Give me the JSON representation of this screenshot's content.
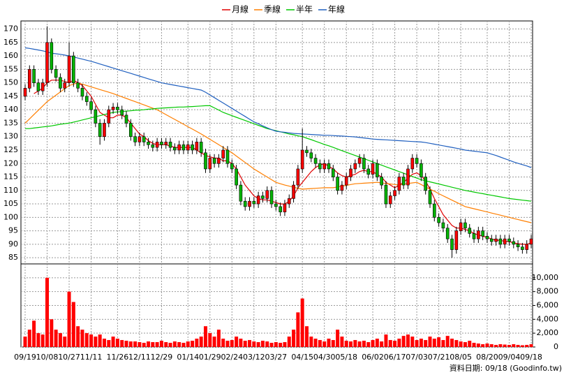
{
  "chart_data": {
    "type": "candlestick",
    "categories": [
      "09/19",
      null,
      null,
      null,
      null,
      "10/08",
      null,
      null,
      null,
      null,
      "10/27",
      null,
      null,
      null,
      null,
      "11/11",
      null,
      null,
      null,
      null,
      null,
      "11/26",
      null,
      null,
      null,
      null,
      "12/11",
      null,
      null,
      null,
      null,
      "12/29",
      null,
      null,
      null,
      null,
      null,
      "01/14",
      null,
      null,
      null,
      null,
      "01/29",
      null,
      null,
      null,
      null,
      "02/24",
      null,
      null,
      null,
      null,
      "03/12",
      null,
      null,
      null,
      null,
      "03/27",
      null,
      null,
      null,
      null,
      null,
      "04/15",
      null,
      null,
      null,
      null,
      "04/30",
      null,
      null,
      null,
      null,
      "05/18",
      null,
      null,
      null,
      null,
      null,
      "06/02",
      null,
      null,
      null,
      null,
      "06/17",
      null,
      null,
      null,
      null,
      "07/03",
      null,
      null,
      null,
      null,
      "07/21",
      null,
      null,
      null,
      null,
      "08/05",
      null,
      null,
      null,
      null,
      null,
      "08/20",
      null,
      null,
      null,
      null,
      "09/04",
      null,
      null,
      null,
      null,
      "09/18"
    ],
    "ohlc": {
      "open": [
        145,
        148,
        155,
        150,
        147,
        150,
        165,
        155,
        152,
        148,
        150,
        160,
        150,
        148,
        145,
        143,
        140,
        135,
        130,
        135,
        140,
        141,
        140,
        138,
        135,
        130,
        128,
        130,
        128,
        127,
        126,
        128,
        127,
        128,
        126,
        125,
        127,
        125,
        127,
        125,
        128,
        124,
        118,
        122,
        120,
        122,
        125,
        120,
        118,
        112,
        106,
        104,
        106,
        105,
        108,
        107,
        110,
        105,
        104,
        102,
        105,
        107,
        112,
        118,
        125,
        124,
        122,
        120,
        118,
        120,
        118,
        115,
        110,
        112,
        115,
        118,
        120,
        122,
        118,
        116,
        120,
        115,
        112,
        105,
        108,
        110,
        115,
        112,
        118,
        122,
        120,
        115,
        110,
        105,
        100,
        98,
        96,
        92,
        88,
        95,
        98,
        96,
        94,
        92,
        95,
        93,
        92,
        91,
        92,
        90,
        92,
        91,
        90,
        89,
        88,
        90
      ],
      "high": [
        149.5,
        156.5,
        156.5,
        151.5,
        151.5,
        171,
        166.5,
        156.5,
        153.5,
        151.5,
        165,
        161.5,
        151.5,
        149.5,
        146.5,
        144.5,
        141.5,
        136.5,
        136.5,
        141.5,
        142.5,
        142.5,
        141.5,
        139.5,
        136.5,
        131.5,
        131.5,
        131.5,
        129.5,
        128.5,
        129.5,
        129.5,
        129.5,
        129.5,
        127.5,
        128.5,
        128.5,
        128.5,
        128.5,
        129.5,
        129.5,
        125.5,
        123.5,
        123.5,
        123.5,
        126.5,
        126.5,
        121.5,
        119.5,
        113.5,
        107.5,
        107.5,
        107.5,
        109.5,
        109.5,
        111.5,
        111.5,
        106.5,
        105.5,
        106.5,
        108.5,
        113.5,
        119.5,
        133,
        126.5,
        125.5,
        123.5,
        121.5,
        121.5,
        121.5,
        119.5,
        116.5,
        113.5,
        116.5,
        119.5,
        121.5,
        123.5,
        123.5,
        119.5,
        121.5,
        121.5,
        116.5,
        113.5,
        109.5,
        111.5,
        116.5,
        116.5,
        119.5,
        123.5,
        123.5,
        121.5,
        116.5,
        111.5,
        106.5,
        101.5,
        99.5,
        97.5,
        93.5,
        96.5,
        99.5,
        99.5,
        97.5,
        95.5,
        96.5,
        96.5,
        94.5,
        93.5,
        93.5,
        93.5,
        93.5,
        93.5,
        92.5,
        91.5,
        90.5,
        91.5,
        93.5
      ],
      "low": [
        143.5,
        146.5,
        148.5,
        145.5,
        145.5,
        148.5,
        153.5,
        150.5,
        146.5,
        146.5,
        148.5,
        148.5,
        146.5,
        143.5,
        141.5,
        138.5,
        133.5,
        127,
        128.5,
        133.5,
        138.5,
        138.5,
        136.5,
        133.5,
        128.5,
        126.5,
        126.5,
        126.5,
        125.5,
        124.5,
        124.5,
        125.5,
        125.5,
        124.5,
        123.5,
        123.5,
        123.5,
        123.5,
        123.5,
        123.5,
        122.5,
        116.5,
        116.5,
        118.5,
        118.5,
        120.5,
        118.5,
        116.5,
        110.5,
        104.5,
        102.5,
        102.5,
        103.5,
        103.5,
        105.5,
        105.5,
        103.5,
        102.5,
        100.5,
        100.5,
        103.5,
        105.5,
        110.5,
        116.5,
        122.5,
        120.5,
        118.5,
        116.5,
        116.5,
        116.5,
        113.5,
        108.5,
        108.5,
        110.5,
        113.5,
        116.5,
        118.5,
        116.5,
        114.5,
        114.5,
        113.5,
        110.5,
        103.5,
        103.5,
        106.5,
        108.5,
        110.5,
        110.5,
        116.5,
        118.5,
        113.5,
        108.5,
        103.5,
        98.5,
        96.5,
        94.5,
        90.5,
        85,
        86.5,
        93.5,
        94.5,
        92.5,
        90.5,
        90.5,
        91.5,
        90.5,
        89.5,
        89.5,
        88.5,
        88.5,
        89.5,
        88.5,
        87.5,
        86.5,
        86.5,
        88.5
      ],
      "close": [
        148,
        155,
        150,
        147,
        150,
        165,
        155,
        152,
        148,
        150,
        160,
        150,
        148,
        145,
        143,
        140,
        135,
        130,
        135,
        140,
        141,
        140,
        138,
        135,
        130,
        128,
        130,
        128,
        127,
        126,
        128,
        127,
        128,
        126,
        125,
        127,
        125,
        127,
        125,
        128,
        124,
        118,
        122,
        120,
        122,
        125,
        120,
        118,
        112,
        106,
        104,
        106,
        105,
        108,
        107,
        110,
        105,
        104,
        102,
        105,
        107,
        112,
        118,
        125,
        124,
        122,
        120,
        118,
        120,
        118,
        115,
        110,
        112,
        115,
        118,
        120,
        122,
        118,
        116,
        120,
        115,
        112,
        105,
        108,
        110,
        115,
        112,
        118,
        122,
        120,
        115,
        110,
        105,
        100,
        98,
        96,
        92,
        88,
        95,
        98,
        96,
        94,
        92,
        95,
        93,
        92,
        91,
        92,
        90,
        92,
        91,
        90,
        89,
        88,
        90,
        92
      ]
    },
    "up_color": "#ff0000",
    "down_color": "#00b400",
    "series": [
      {
        "name": "月線",
        "color": "#e00000",
        "values": [
          null,
          null,
          146,
          147,
          148,
          150,
          151,
          151,
          151,
          150.5,
          150,
          151,
          150,
          149,
          147,
          145,
          142,
          139,
          138,
          137,
          137,
          138,
          138,
          137,
          135,
          133,
          131,
          130,
          128.5,
          127.5,
          127,
          127,
          127,
          126.5,
          126,
          126,
          126,
          126,
          126,
          125,
          124,
          123,
          122.5,
          122,
          122,
          121,
          121,
          120,
          118,
          115,
          112,
          110,
          108,
          107,
          106.5,
          106.5,
          106,
          105.5,
          105,
          105,
          106,
          108,
          111,
          113,
          115,
          117,
          118.5,
          119.5,
          120,
          119,
          118,
          116.5,
          115.5,
          115,
          115.5,
          116,
          117,
          117.5,
          117,
          117,
          116,
          115,
          113,
          112,
          111,
          112,
          113,
          114.5,
          116,
          116.5,
          115.5,
          113.5,
          110.5,
          107,
          104,
          101,
          99,
          97,
          96,
          96,
          95.5,
          95,
          94,
          93.5,
          93,
          92.5,
          92,
          91.5,
          91.5,
          91,
          91,
          90.5,
          90.2,
          90,
          90,
          90.5
        ]
      },
      {
        "name": "季線",
        "color": "#ff7f00",
        "values": [
          135,
          136.6,
          138.2,
          139.8,
          141.4,
          143,
          144.2,
          145.4,
          146.6,
          147.8,
          149,
          149.5,
          150,
          149.5,
          149,
          148.5,
          148,
          147.5,
          147,
          146.5,
          146,
          145.4,
          144.8,
          144.2,
          143.6,
          143,
          142.4,
          141.8,
          141.2,
          140.6,
          140,
          139.1,
          138.2,
          137.3,
          136.4,
          135.5,
          134.6,
          133.7,
          132.8,
          131.9,
          131,
          130,
          129,
          128,
          127,
          126,
          125,
          124,
          122.8,
          121.6,
          120.4,
          119.2,
          118,
          117,
          116,
          115,
          114,
          113,
          112.5,
          112,
          111.6,
          111.2,
          110.8,
          110.5,
          110.6,
          110.7,
          110.8,
          110.9,
          111,
          111,
          111,
          111.3,
          111.6,
          111.9,
          112.2,
          112.5,
          112.6,
          112.7,
          112.8,
          112.9,
          113,
          112.8,
          112.6,
          112.4,
          112.2,
          112,
          112.3,
          112.6,
          112.8,
          113,
          112.2,
          111.3,
          110.5,
          109.7,
          108.8,
          108,
          107.2,
          106.4,
          105.6,
          104.8,
          104,
          103.6,
          103.2,
          102.8,
          102.4,
          102,
          101.6,
          101.2,
          100.8,
          100.4,
          100,
          99.6,
          99.2,
          98.8,
          98.4,
          98
        ]
      },
      {
        "name": "半年",
        "color": "#00c800",
        "values": [
          133,
          133,
          133.2,
          133.4,
          133.6,
          133.8,
          134,
          134.3,
          134.6,
          134.8,
          135,
          135.4,
          135.8,
          136.2,
          136.6,
          137,
          137.4,
          137.8,
          138.2,
          138.6,
          139,
          139.2,
          139.3,
          139.5,
          139.6,
          139.8,
          139.9,
          140,
          140.2,
          140.3,
          140.5,
          140.6,
          140.7,
          140.8,
          140.9,
          141,
          141,
          141.1,
          141.2,
          141.3,
          141.4,
          141.5,
          141.5,
          140.7,
          139.9,
          139,
          138.4,
          137.8,
          137.2,
          136.6,
          136,
          135.4,
          134.8,
          134.2,
          133.6,
          133,
          132.6,
          132.2,
          131.8,
          131.4,
          131,
          130.7,
          130.3,
          130,
          129.4,
          128.9,
          128.3,
          127.7,
          127.1,
          126.6,
          126,
          125.4,
          124.8,
          124.2,
          123.6,
          123,
          122.4,
          121.8,
          121.2,
          120.6,
          120,
          119.4,
          118.8,
          118.2,
          117.6,
          117,
          116.4,
          115.8,
          115.2,
          114.6,
          114,
          113.6,
          113.2,
          112.8,
          112.4,
          112,
          111.6,
          111.2,
          110.8,
          110.4,
          110,
          109.7,
          109.4,
          109.1,
          108.8,
          108.5,
          108.2,
          107.9,
          107.6,
          107.3,
          107,
          106.8,
          106.6,
          106.4,
          106.2,
          106
        ]
      },
      {
        "name": "年線",
        "color": "#1f5fbf",
        "values": [
          163,
          162.8,
          162.5,
          162.2,
          161.9,
          161.5,
          161,
          160.8,
          160.6,
          160.3,
          160,
          159.6,
          159.2,
          158.8,
          158.4,
          158,
          157.5,
          157,
          156.5,
          156,
          155.5,
          155,
          154.5,
          154,
          153.5,
          153,
          152.5,
          152,
          151.5,
          151,
          150.5,
          150,
          149.7,
          149.4,
          149.1,
          148.8,
          148.5,
          148.2,
          147.9,
          147.6,
          147.3,
          146.5,
          145.5,
          144.5,
          143.5,
          142.5,
          141.5,
          140.5,
          139.5,
          138.5,
          137.5,
          136.5,
          135.5,
          134.8,
          134,
          133.3,
          132.6,
          132,
          131.8,
          131.6,
          131.4,
          131.2,
          131.1,
          131,
          130.9,
          130.8,
          130.7,
          130.6,
          130.5,
          130.5,
          130.4,
          130.3,
          130.2,
          130.1,
          130,
          129.9,
          129.7,
          129.5,
          129.3,
          129.1,
          129,
          128.9,
          128.8,
          128.7,
          128.6,
          128.5,
          128.4,
          128.3,
          128.2,
          128.1,
          128,
          127.8,
          127.5,
          127.2,
          126.9,
          126.6,
          126.3,
          126,
          125.7,
          125.4,
          125,
          124.8,
          124.6,
          124.4,
          124.2,
          124,
          123.5,
          123,
          122.4,
          121.8,
          121.2,
          120.6,
          120.1,
          119.6,
          119.1,
          118.5
        ]
      }
    ],
    "ylim": [
      82.7,
      173
    ],
    "yticks": [
      85,
      90,
      95,
      100,
      105,
      110,
      115,
      120,
      125,
      130,
      135,
      140,
      145,
      150,
      155,
      160,
      165,
      170
    ],
    "volume": {
      "color": "#ff0000",
      "values": [
        1500,
        2500,
        3800,
        2000,
        1800,
        10000,
        4000,
        2500,
        2000,
        1500,
        8000,
        6500,
        3000,
        2500,
        2000,
        1800,
        1500,
        1800,
        1200,
        1000,
        1500,
        1200,
        1000,
        900,
        800,
        800,
        700,
        600,
        800,
        700,
        700,
        900,
        700,
        600,
        800,
        700,
        600,
        800,
        900,
        1200,
        1500,
        3000,
        2000,
        1500,
        2500,
        1200,
        900,
        1000,
        1500,
        1200,
        900,
        1000,
        800,
        700,
        900,
        800,
        600,
        700,
        600,
        700,
        1500,
        2500,
        5000,
        7000,
        3000,
        1500,
        1200,
        1000,
        800,
        1200,
        1000,
        2500,
        1500,
        900,
        800,
        1000,
        800,
        900,
        700,
        1000,
        1200,
        800,
        1800,
        1000,
        900,
        1200,
        1600,
        1800,
        1500,
        1000,
        1200,
        1000,
        1500,
        1200,
        1400,
        1000,
        1600,
        1200,
        1000,
        800,
        700,
        900,
        600,
        500,
        400,
        500,
        400,
        300,
        400,
        350,
        300,
        400,
        300,
        250,
        300,
        400
      ],
      "ylim": [
        0,
        12000
      ],
      "yticks": [
        0,
        {
          "value": 2000,
          "label": "2,000"
        },
        {
          "value": 4000,
          "label": "4,000"
        },
        {
          "value": 6000,
          "label": "6,000"
        },
        {
          "value": 8000,
          "label": "8,000"
        },
        {
          "value": 10000,
          "label": "10,000"
        }
      ]
    },
    "grid": true,
    "footer": "資料日期: 09/18 (Goodinfo.tw)"
  }
}
